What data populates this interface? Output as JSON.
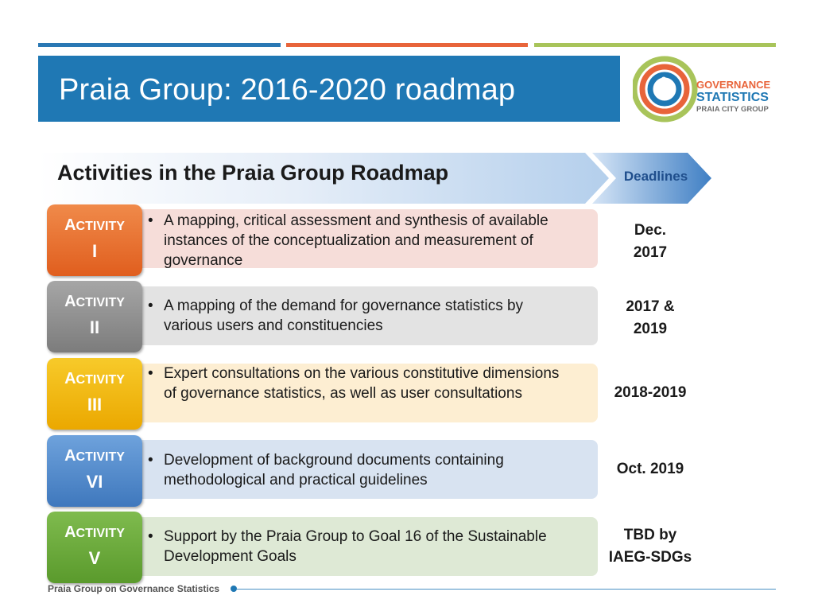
{
  "slide": {
    "title": "Praia Group: 2016-2020 roadmap",
    "footer": "Praia Group on Governance Statistics"
  },
  "logo": {
    "line1": "GOVERNANCE",
    "line2": "STATISTICS",
    "line3": "PRAIA CITY GROUP"
  },
  "banner": {
    "title": "Activities in the Praia Group Roadmap",
    "deadlines_label": "Deadlines"
  },
  "colors": {
    "title_bg": "#1f78b4",
    "activity_1": "#e8732e",
    "activity_2": "#8a8a8a",
    "activity_3": "#f2b705",
    "activity_4": "#4a86c8",
    "activity_5": "#6aaa3a"
  },
  "activities": [
    {
      "word_initial": "A",
      "word_rest": "CTIVITY",
      "number": "I",
      "bullet": "A mapping, critical assessment and synthesis of available instances of the conceptualization and measurement of governance",
      "deadline_l1": "Dec.",
      "deadline_l2": "2017"
    },
    {
      "word_initial": "A",
      "word_rest": "CTIVITY",
      "number": "II",
      "bullet": "A mapping of the demand for governance statistics by various users and constituencies",
      "deadline_l1": "2017 &",
      "deadline_l2": "2019"
    },
    {
      "word_initial": "A",
      "word_rest": "CTIVITY",
      "number": "III",
      "bullet": "Expert consultations on the various constitutive dimensions of governance statistics, as well as user consultations",
      "deadline_l1": "2018-2019",
      "deadline_l2": ""
    },
    {
      "word_initial": "A",
      "word_rest": "CTIVITY",
      "number": "VI",
      "bullet": "Development of background documents containing methodological and practical guidelines",
      "deadline_l1": "Oct. 2019",
      "deadline_l2": ""
    },
    {
      "word_initial": "A",
      "word_rest": "CTIVITY",
      "number": "V",
      "bullet": "Support by the Praia Group to Goal 16 of the Sustainable Development Goals",
      "deadline_l1": "TBD by",
      "deadline_l2": "IAEG-SDGs"
    }
  ]
}
